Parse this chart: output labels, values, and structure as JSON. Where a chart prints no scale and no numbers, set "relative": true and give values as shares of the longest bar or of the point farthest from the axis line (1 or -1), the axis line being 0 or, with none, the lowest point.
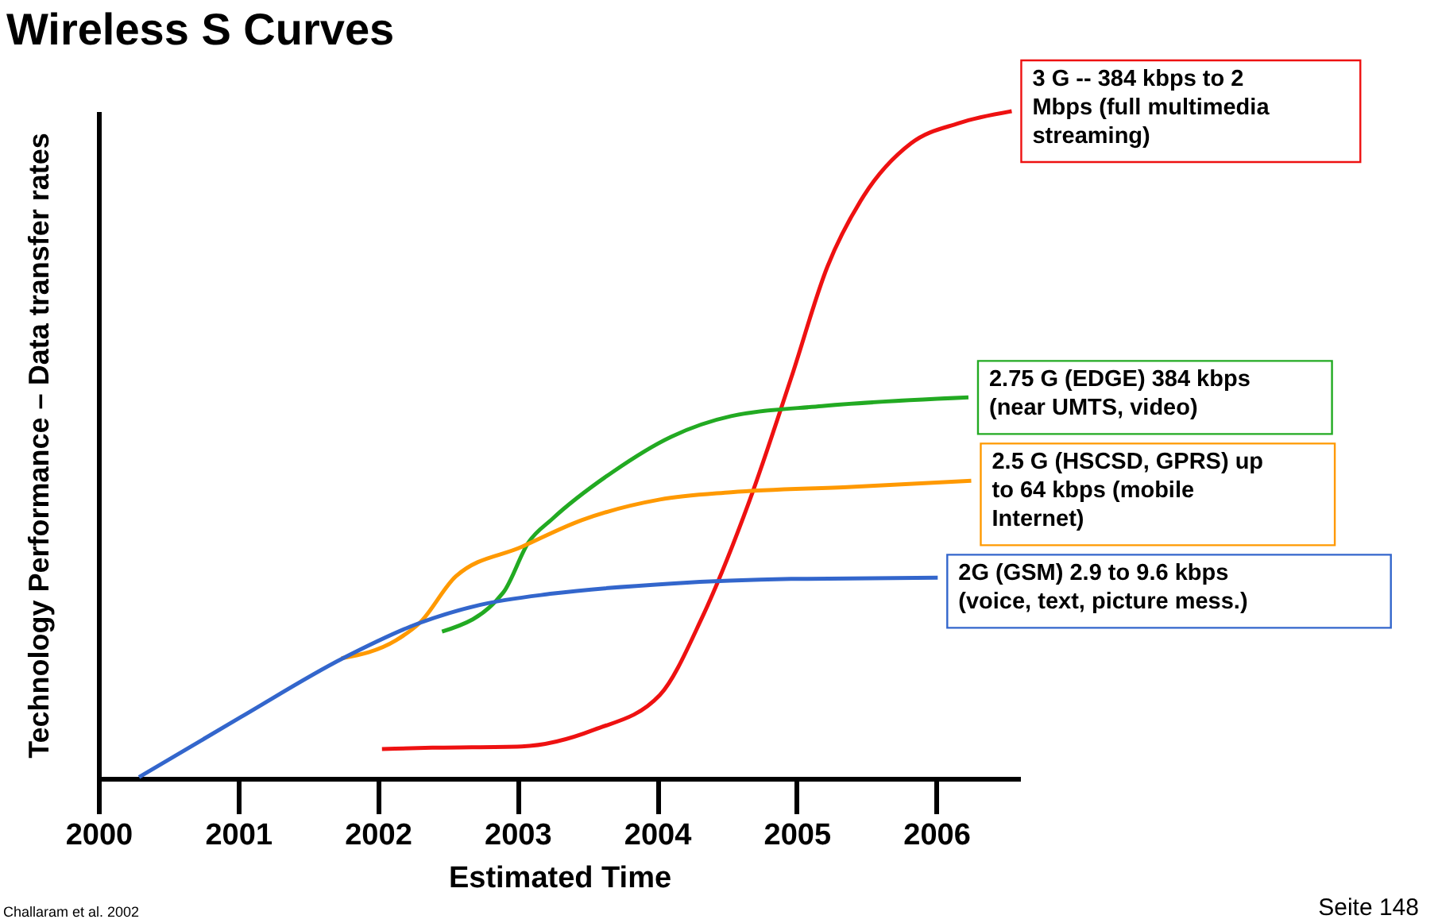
{
  "chart_data": {
    "type": "line",
    "title": "Wireless S Curves",
    "xlabel": "Estimated Time",
    "ylabel": "Technology Performance – Data transfer rates",
    "relative": true,
    "xlim": [
      2000,
      2006.6
    ],
    "xticks": [
      2000,
      2001,
      2002,
      2003,
      2004,
      2005,
      2006
    ],
    "grid": false,
    "annotations": [
      "Challaram et al. 2002",
      "Seite 148"
    ],
    "series": [
      {
        "name": "3 G  -- 384 kbps to 2\nMbps (full multimedia\nstreaming)",
        "color": "#ee1111",
        "x": [
          2002.03,
          2002.39,
          2003.03,
          2003.55,
          2004.02,
          2004.32,
          2004.66,
          2004.96,
          2005.22,
          2005.48,
          2005.82,
          2006.16,
          2006.54
        ],
        "values": [
          0.044,
          0.046,
          0.048,
          0.073,
          0.125,
          0.24,
          0.415,
          0.6,
          0.767,
          0.873,
          0.952,
          0.982,
          1.0
        ]
      },
      {
        "name": "2.75 G (EDGE) 384 kbps\n(near UMTS, video)",
        "color": "#22aa22",
        "x": [
          2002.46,
          2002.9,
          2003.08,
          2003.25,
          2003.68,
          2004.1,
          2004.53,
          2005.18,
          2006.23
        ],
        "values": [
          0.22,
          0.279,
          0.354,
          0.389,
          0.459,
          0.512,
          0.543,
          0.558,
          0.571
        ]
      },
      {
        "name": "2.5 G (HSCSD, GPRS) up\nto 64 kbps (mobile\nInternet)",
        "color": "#ff9900",
        "x": [
          2001.74,
          2002.13,
          2002.3,
          2002.56,
          2003.03,
          2003.46,
          2004.02,
          2004.53,
          2005.39,
          2006.25
        ],
        "values": [
          0.18,
          0.207,
          0.233,
          0.303,
          0.347,
          0.387,
          0.418,
          0.429,
          0.437,
          0.446
        ]
      },
      {
        "name": "2G (GSM) 2.9 to 9.6 kbps\n(voice, text, picture mess.)",
        "color": "#3366cc",
        "x": [
          2000.29,
          2001.02,
          2001.75,
          2002.3,
          2002.73,
          2003.25,
          2004.1,
          2004.96,
          2006.01
        ],
        "values": [
          0.002,
          0.092,
          0.18,
          0.233,
          0.26,
          0.277,
          0.292,
          0.299,
          0.301
        ]
      }
    ]
  }
}
